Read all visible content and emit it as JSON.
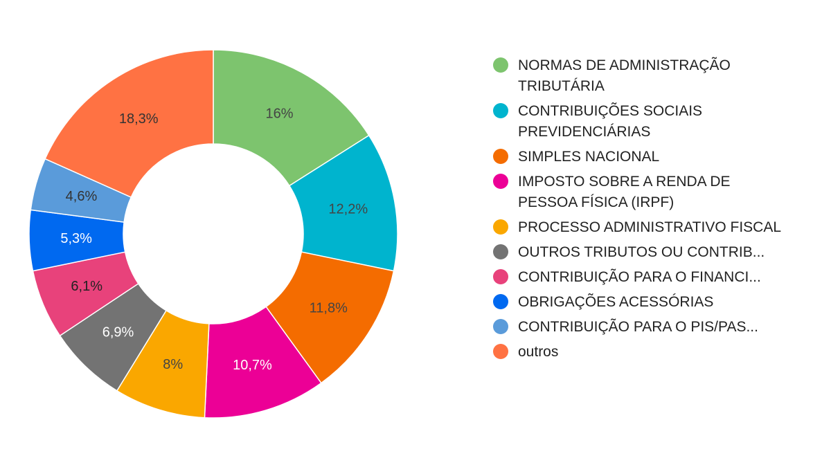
{
  "chart_data": {
    "type": "pie",
    "variant": "donut",
    "legend_position": "right",
    "slices": [
      {
        "label": "NORMAS DE ADMINISTRAÇÃO TRIBUTÁRIA",
        "value": 16,
        "value_label": "16%",
        "color": "#7DC46E",
        "text_color": "#444444"
      },
      {
        "label": "CONTRIBUIÇÕES SOCIAIS PREVIDENCIÁRIAS",
        "value": 12.2,
        "value_label": "12,2%",
        "color": "#00B4CE",
        "text_color": "#444444"
      },
      {
        "label": "SIMPLES NACIONAL",
        "value": 11.8,
        "value_label": "11,8%",
        "color": "#F46C00",
        "text_color": "#444444"
      },
      {
        "label": "IMPOSTO SOBRE A RENDA DE PESSOA FÍSICA (IRPF)",
        "value": 10.7,
        "value_label": "10,7%",
        "color": "#EC0096",
        "text_color": "#ffffff"
      },
      {
        "label": "PROCESSO ADMINISTRATIVO FISCAL",
        "value": 8,
        "value_label": "8%",
        "color": "#FAA700",
        "text_color": "#444444"
      },
      {
        "label": "OUTROS TRIBUTOS OU CONTRIB...",
        "value": 6.9,
        "value_label": "6,9%",
        "color": "#737373",
        "text_color": "#ffffff"
      },
      {
        "label": "CONTRIBUIÇÃO PARA O FINANCI...",
        "value": 6.1,
        "value_label": "6,1%",
        "color": "#E8427B",
        "text_color": "#222222"
      },
      {
        "label": "OBRIGAÇÕES ACESSÓRIAS",
        "value": 5.3,
        "value_label": "5,3%",
        "color": "#0069F0",
        "text_color": "#ffffff"
      },
      {
        "label": "CONTRIBUIÇÃO PARA O PIS/PAS...",
        "value": 4.6,
        "value_label": "4,6%",
        "color": "#5A9BDA",
        "text_color": "#333333"
      },
      {
        "label": "outros",
        "value": 18.3,
        "value_label": "18,3%",
        "color": "#FF7243",
        "text_color": "#333333"
      }
    ]
  }
}
